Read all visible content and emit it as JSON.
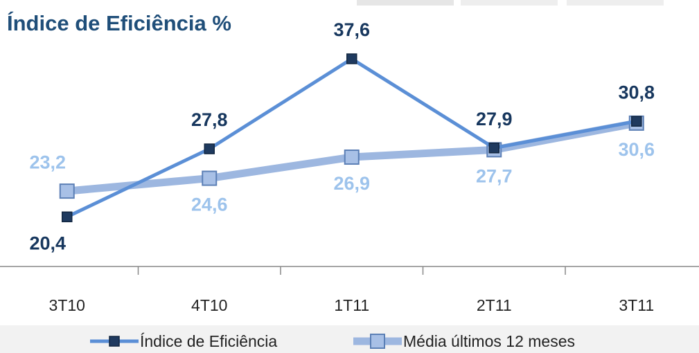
{
  "chart_data": {
    "type": "line",
    "title": "Índice de Eficiência %",
    "categories": [
      "3T10",
      "4T10",
      "1T11",
      "2T11",
      "3T11"
    ],
    "series": [
      {
        "name": "Índice de Eficiência",
        "color": "#5b8fd6",
        "marker_color": "#1f3a5f",
        "label_color": "#17375e",
        "values": [
          20.4,
          27.8,
          37.6,
          27.9,
          30.8
        ],
        "value_labels": [
          "20,4",
          "27,8",
          "37,6",
          "27,9",
          "30,8"
        ]
      },
      {
        "name": "Média últimos 12 meses",
        "color": "#9db7e0",
        "marker_color": "#a8c0e6",
        "label_color": "#9dc3ec",
        "values": [
          23.2,
          24.6,
          26.9,
          27.7,
          30.6
        ],
        "value_labels": [
          "23,2",
          "24,6",
          "26,9",
          "27,7",
          "30,6"
        ]
      }
    ],
    "ylim": [
      15,
      44
    ],
    "grid": false
  }
}
